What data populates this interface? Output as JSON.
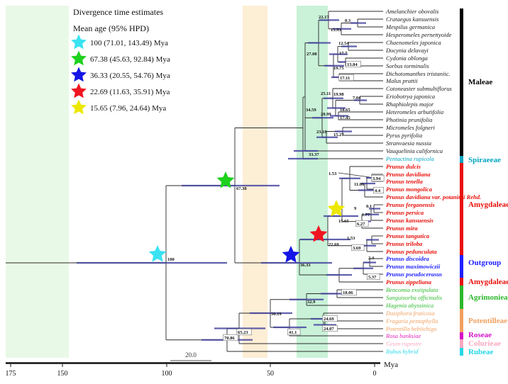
{
  "legend": {
    "title": "Divergence time estimates",
    "subtitle": "Mean age (95% HPD)",
    "items": [
      {
        "star_color": "#3ae3f2",
        "label": "100 (71.01, 143.49)  Mya"
      },
      {
        "star_color": "#1ed11e",
        "label": "67.38 (45.63, 92.84) Mya"
      },
      {
        "star_color": "#1414e6",
        "label": "36.33 (20.55, 54.76) Mya"
      },
      {
        "star_color": "#f01420",
        "label": "22.69 (11.63, 35.91) Mya"
      },
      {
        "star_color": "#ece800",
        "label": "15.65 (7.96, 24.64)  Mya"
      }
    ]
  },
  "taxa": [
    {
      "name": "Amelanchier obovalis",
      "color": "#1a1a1a",
      "bold": false
    },
    {
      "name": "Crataegus kansuensis",
      "color": "#1a1a1a",
      "bold": false
    },
    {
      "name": "Mespilus germanica",
      "color": "#1a1a1a",
      "bold": false
    },
    {
      "name": "Hesperomeles pernettyoide",
      "color": "#1a1a1a",
      "bold": false
    },
    {
      "name": "Chaenomeles japonica",
      "color": "#1a1a1a",
      "bold": false
    },
    {
      "name": "Docynia delavayi",
      "color": "#1a1a1a",
      "bold": false
    },
    {
      "name": "Cydonia oblonga",
      "color": "#1a1a1a",
      "bold": false
    },
    {
      "name": "Sorbus torminalis",
      "color": "#1a1a1a",
      "bold": false
    },
    {
      "name": "Dichotomanthes tristaniic.",
      "color": "#1a1a1a",
      "bold": false
    },
    {
      "name": "Malus prattii",
      "color": "#1a1a1a",
      "bold": false
    },
    {
      "name": "Cotoneaster submultiflorus",
      "color": "#1a1a1a",
      "bold": false
    },
    {
      "name": "Eriobotrya japonica",
      "color": "#1a1a1a",
      "bold": false
    },
    {
      "name": "Rhaphiolepis major",
      "color": "#1a1a1a",
      "bold": false
    },
    {
      "name": "Heteromeles arbutifolia",
      "color": "#1a1a1a",
      "bold": false
    },
    {
      "name": "Photinia prunifolia",
      "color": "#1a1a1a",
      "bold": false
    },
    {
      "name": "Micromeles folgneri",
      "color": "#1a1a1a",
      "bold": false
    },
    {
      "name": "Pyrus pyrifolia",
      "color": "#1a1a1a",
      "bold": false
    },
    {
      "name": "Stranvaesia nussia",
      "color": "#1a1a1a",
      "bold": false
    },
    {
      "name": "Vauquelinia californica",
      "color": "#1a1a1a",
      "bold": false
    },
    {
      "name": "Pentactina rupicola",
      "color": "#00a5c0",
      "bold": false
    },
    {
      "name": "Prunus dulcis",
      "color": "#e8100a",
      "bold": true
    },
    {
      "name": "Prunus davidiana",
      "color": "#e8100a",
      "bold": true
    },
    {
      "name": "Prunus tenella",
      "color": "#e8100a",
      "bold": true
    },
    {
      "name": "Prunus mongolica",
      "color": "#e8100a",
      "bold": true
    },
    {
      "name": "Prunus davidiana var. potaninii Rehd.",
      "color": "#e8100a",
      "bold": true
    },
    {
      "name": "Prunus ferganensis",
      "color": "#e8100a",
      "bold": true
    },
    {
      "name": "Prunus persica",
      "color": "#e8100a",
      "bold": true
    },
    {
      "name": "Prunus kansuensis",
      "color": "#e8100a",
      "bold": true
    },
    {
      "name": "Prunus mira",
      "color": "#e8100a",
      "bold": true
    },
    {
      "name": "Prunus tangutica",
      "color": "#e8100a",
      "bold": true
    },
    {
      "name": "Prunus triloba",
      "color": "#e8100a",
      "bold": true
    },
    {
      "name": "Prunus pedunculata",
      "color": "#e8100a",
      "bold": true
    },
    {
      "name": "Prunus discoidea",
      "color": "#1f1fff",
      "bold": true
    },
    {
      "name": "Prunus maximowiczii",
      "color": "#1f1fff",
      "bold": true
    },
    {
      "name": "Prunus pseudocerasus",
      "color": "#1f1fff",
      "bold": true
    },
    {
      "name": "Prunus zippeliana",
      "color": "#e8100a",
      "bold": true
    },
    {
      "name": "Bencomia exstipulata",
      "color": "#2db82d",
      "bold": false
    },
    {
      "name": "Sanguisorba officinalis",
      "color": "#2db82d",
      "bold": false
    },
    {
      "name": "Hagenia abyssinica",
      "color": "#2db82d",
      "bold": false
    },
    {
      "name": "Dasiphora fruticosa",
      "color": "#f0a060",
      "bold": false
    },
    {
      "name": "Fragaria pentaphylla",
      "color": "#f0a060",
      "bold": false
    },
    {
      "name": "Potentilla hebiichigo",
      "color": "#f0a060",
      "bold": false
    },
    {
      "name": "Rosa banksiae",
      "color": "#e321b8",
      "bold": false
    },
    {
      "name": "Geum rupestre",
      "color": "#f9a8c0",
      "bold": false
    },
    {
      "name": "Rubus hybrid",
      "color": "#26d7e8",
      "bold": false
    }
  ],
  "node_ages": [
    "22.17",
    "8.3",
    "15.93",
    "12.54",
    "17.7",
    "13.84",
    "19.75",
    "17.11",
    "27.08",
    "25.11",
    "19.98",
    "7.04",
    "18.65",
    "20.99",
    "17.45",
    "23.18",
    "15.27",
    "34.59",
    "33.37",
    "67.38",
    "1.53",
    "3.94",
    "11.86",
    "4.4",
    "9",
    "0.1",
    "1.77",
    "15.65",
    "6.27",
    "22.69",
    "1.53",
    "3.69",
    "36.33",
    "2.4",
    "5.37",
    "18.06",
    "32.9",
    "50.19",
    "24.69",
    "24.07",
    "41.1",
    "65.23",
    "70.86",
    "100"
  ],
  "clades": [
    {
      "label": "Maleae",
      "color": "#000000"
    },
    {
      "label": "Spiraeeae",
      "color": "#00a5c0"
    },
    {
      "label": "Amygdaleae",
      "color": "#e8100a"
    },
    {
      "label": "Outgroup",
      "color": "#1f1fff"
    },
    {
      "label": "Amygdaleae",
      "color": "#e8100a"
    },
    {
      "label": "Agrimonieae",
      "color": "#2db82d"
    },
    {
      "label": "Potentilleae",
      "color": "#f0a060"
    },
    {
      "label": "Roseae",
      "color": "#d410c8"
    },
    {
      "label": "Colurieae",
      "color": "#f9a8c0"
    },
    {
      "label": "Rubeae",
      "color": "#26d7e8"
    }
  ],
  "axis": {
    "ticks": [
      "175",
      "150",
      "100",
      "50",
      "0"
    ],
    "unit": "Mya",
    "scale_bar": "20.0"
  }
}
